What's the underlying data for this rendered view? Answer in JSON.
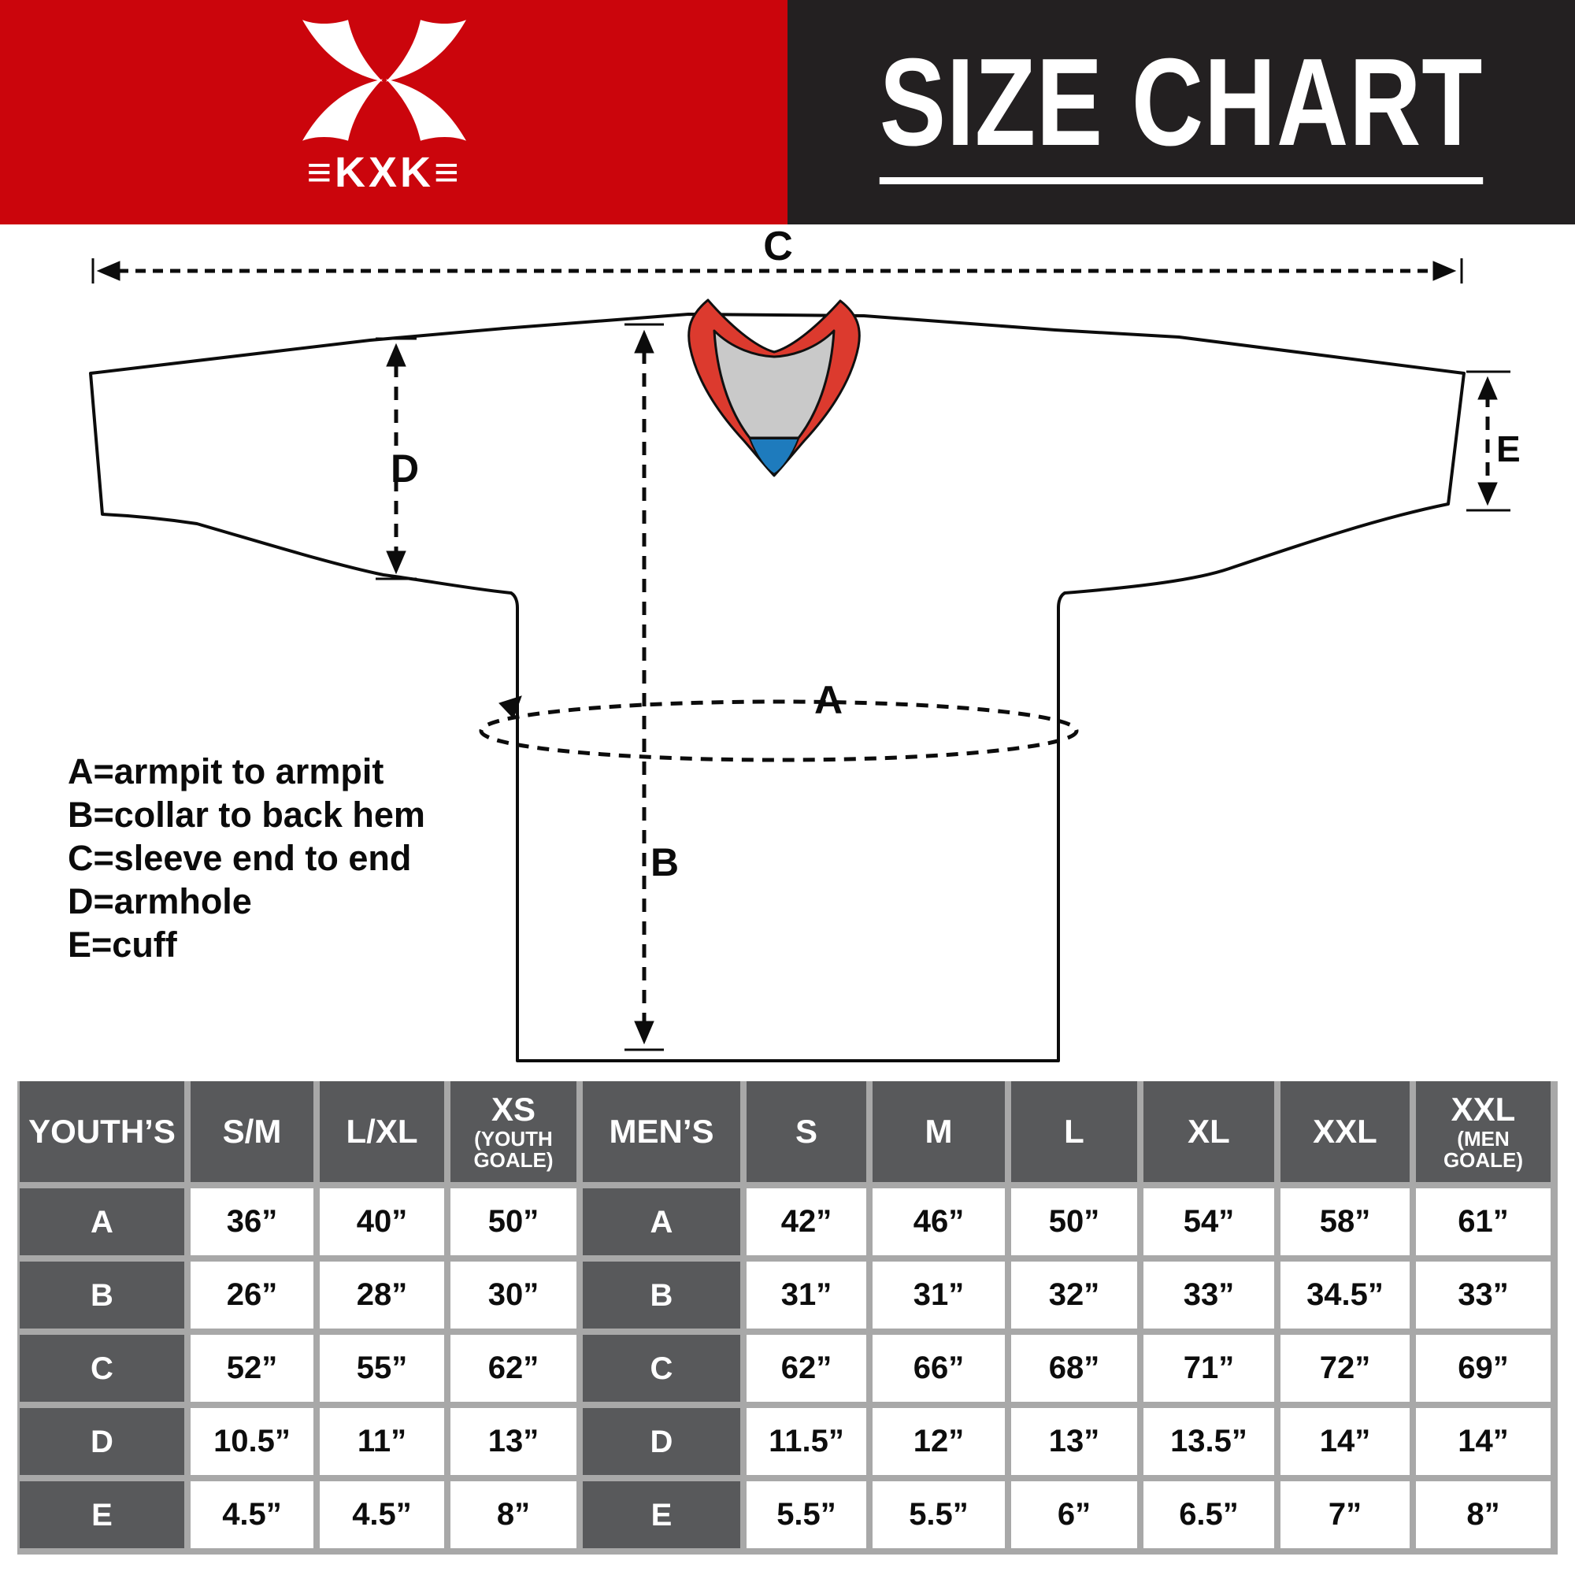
{
  "banner": {
    "logo_text": "≡KXK≡",
    "title": "SIZE CHART",
    "red": "#CB050C",
    "black": "#232021"
  },
  "diagram": {
    "labels": {
      "A": "A",
      "B": "B",
      "C": "C",
      "D": "D",
      "E": "E"
    },
    "legend": [
      "A=armpit to armpit",
      "B=collar to back hem",
      "C=sleeve end to end",
      "D=armhole",
      "E=cuff"
    ],
    "collar_colors": {
      "red": "#DC3A2E",
      "gray": "#C9C9C9",
      "blue": "#1E7BBD"
    }
  },
  "table": {
    "header": [
      {
        "label": "YOUTH’S"
      },
      {
        "label": "S/M"
      },
      {
        "label": "L/XL"
      },
      {
        "label": "XS",
        "sub": "(YOUTH GOALE)"
      },
      {
        "label": "MEN’S"
      },
      {
        "label": "S"
      },
      {
        "label": "M"
      },
      {
        "label": "L"
      },
      {
        "label": "XL"
      },
      {
        "label": "XXL"
      },
      {
        "label": "XXL",
        "sub": "(MEN GOALE)"
      }
    ],
    "rows": [
      {
        "label": "A",
        "youth": [
          "36”",
          "40”",
          "50”"
        ],
        "men": [
          "42”",
          "46”",
          "50”",
          "54”",
          "58”",
          "61”"
        ]
      },
      {
        "label": "B",
        "youth": [
          "26”",
          "28”",
          "30”"
        ],
        "men": [
          "31”",
          "31”",
          "32”",
          "33”",
          "34.5”",
          "33”"
        ]
      },
      {
        "label": "C",
        "youth": [
          "52”",
          "55”",
          "62”"
        ],
        "men": [
          "62”",
          "66”",
          "68”",
          "71”",
          "72”",
          "69”"
        ]
      },
      {
        "label": "D",
        "youth": [
          "10.5”",
          "11”",
          "13”"
        ],
        "men": [
          "11.5”",
          "12”",
          "13”",
          "13.5”",
          "14”",
          "14”"
        ]
      },
      {
        "label": "E",
        "youth": [
          "4.5”",
          "4.5”",
          "8”"
        ],
        "men": [
          "5.5”",
          "5.5”",
          "6”",
          "6.5”",
          "7”",
          "8”"
        ]
      }
    ]
  }
}
